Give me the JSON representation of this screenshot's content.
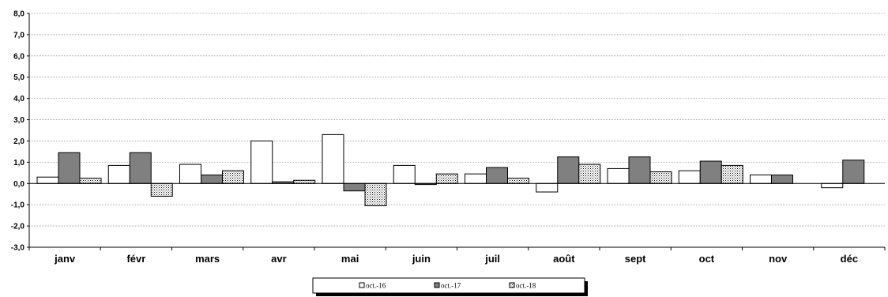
{
  "chart_data": {
    "type": "bar",
    "categories": [
      "janv",
      "févr",
      "mars",
      "avr",
      "mai",
      "juin",
      "juil",
      "août",
      "sept",
      "oct",
      "nov",
      "déc"
    ],
    "series": [
      {
        "name": "oct.-16",
        "values": [
          0.3,
          0.85,
          0.9,
          2.0,
          2.3,
          0.85,
          0.45,
          -0.4,
          0.7,
          0.6,
          0.4,
          -0.2
        ],
        "fill": "#ffffff"
      },
      {
        "name": "oct.-17",
        "values": [
          1.45,
          1.45,
          0.4,
          0.08,
          -0.35,
          -0.05,
          0.75,
          1.25,
          1.25,
          1.05,
          0.4,
          1.1
        ],
        "fill": "#808080"
      },
      {
        "name": "oct.-18",
        "values": [
          0.25,
          -0.6,
          0.6,
          0.15,
          -1.05,
          0.45,
          0.25,
          0.9,
          0.55,
          0.85,
          null,
          null
        ],
        "fill": "dotted"
      }
    ],
    "yticks": [
      "-3,0",
      "-2,0",
      "-1,0",
      "0,0",
      "1,0",
      "2,0",
      "3,0",
      "4,0",
      "5,0",
      "6,0",
      "7,0",
      "8,0"
    ],
    "ylim": [
      -3,
      8
    ],
    "ystep": 1,
    "grid": true,
    "legend_position": "bottom-center",
    "title": "",
    "xlabel": "",
    "ylabel": ""
  }
}
